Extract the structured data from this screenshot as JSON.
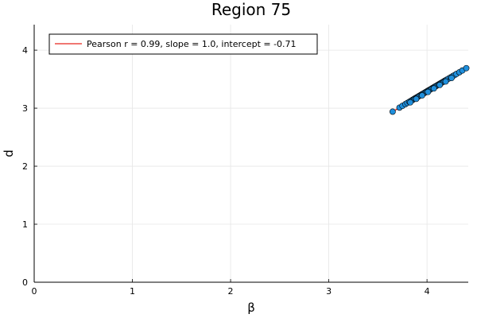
{
  "chart_data": {
    "type": "scatter",
    "title": "Region 75",
    "xlabel": "β",
    "ylabel": "d",
    "xlim": [
      0,
      4.42
    ],
    "ylim": [
      0,
      4.44
    ],
    "xticks": [
      0,
      1,
      2,
      3,
      4
    ],
    "yticks": [
      0,
      1,
      2,
      3,
      4
    ],
    "grid": true,
    "legend_position": "top-left",
    "colors": {
      "points": "#1f8fdc",
      "point_edge": "#000000",
      "fit_line": "#e6261f"
    },
    "fit": {
      "label": "Pearson r = 0.99, slope = 1.0, intercept = -0.71",
      "slope": 1.0,
      "intercept": -0.71
    },
    "series": [
      {
        "name": "points",
        "x": [
          3.65,
          3.72,
          3.75,
          3.78,
          3.8,
          3.82,
          3.84,
          3.85,
          3.86,
          3.87,
          3.88,
          3.89,
          3.9,
          3.91,
          3.92,
          3.93,
          3.94,
          3.95,
          3.96,
          3.97,
          3.98,
          3.99,
          4.0,
          4.01,
          4.02,
          4.03,
          4.04,
          4.05,
          4.06,
          4.07,
          4.08,
          4.09,
          4.1,
          4.11,
          4.12,
          4.13,
          4.14,
          4.15,
          4.16,
          4.17,
          4.18,
          4.19,
          4.2,
          4.22,
          4.24,
          4.26,
          4.28,
          4.3,
          4.33,
          4.36,
          4.4,
          3.83,
          3.89,
          3.95,
          4.01,
          4.07,
          4.13,
          4.19,
          4.25
        ],
        "y": [
          2.94,
          3.01,
          3.04,
          3.07,
          3.09,
          3.11,
          3.13,
          3.14,
          3.15,
          3.16,
          3.17,
          3.18,
          3.19,
          3.2,
          3.21,
          3.22,
          3.23,
          3.24,
          3.25,
          3.26,
          3.27,
          3.28,
          3.29,
          3.3,
          3.31,
          3.32,
          3.33,
          3.34,
          3.35,
          3.36,
          3.37,
          3.38,
          3.39,
          3.4,
          3.41,
          3.42,
          3.43,
          3.44,
          3.45,
          3.46,
          3.47,
          3.48,
          3.49,
          3.51,
          3.53,
          3.55,
          3.57,
          3.59,
          3.62,
          3.65,
          3.69,
          3.1,
          3.16,
          3.22,
          3.28,
          3.34,
          3.4,
          3.46,
          3.52
        ]
      }
    ]
  }
}
